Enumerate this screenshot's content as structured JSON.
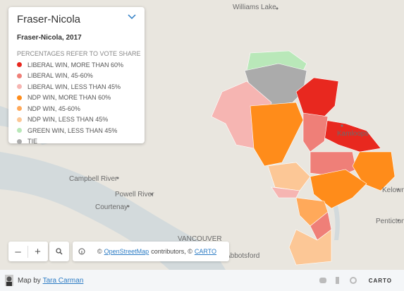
{
  "panel": {
    "title": "Fraser-Nicola",
    "subtitle": "Fraser-Nicola, 2017"
  },
  "legend": {
    "heading": "PERCENTAGES REFER TO VOTE SHARE",
    "items": [
      {
        "label": "LIBERAL WIN, MORE THAN 60%",
        "color": "#e8281f"
      },
      {
        "label": "LIBERAL WIN, 45-60%",
        "color": "#ef7f78"
      },
      {
        "label": "LIBERAL WIN, LESS THAN 45%",
        "color": "#f6b5b2"
      },
      {
        "label": "NDP WIN, MORE THAN 60%",
        "color": "#ff8c1a"
      },
      {
        "label": "NDP WIN, 45-60%",
        "color": "#ffa95a"
      },
      {
        "label": "NDP WIN, LESS THAN 45%",
        "color": "#fcc796"
      },
      {
        "label": "GREEN WIN, LESS THAN 45%",
        "color": "#b9e8b9"
      },
      {
        "label": "TIE",
        "color": "#ababab"
      }
    ]
  },
  "cities": [
    "Williams Lake",
    "Kamloops",
    "Campbell River",
    "Powell River",
    "Courtenay",
    "VANCOUVER",
    "Abbotsford",
    "Kelowna",
    "Penticton"
  ],
  "controls": {
    "zoom_out": "–",
    "zoom_in": "+"
  },
  "attribution": {
    "prefix": "©",
    "osm": "OpenStreetMap",
    "middle": "contributors, ©",
    "carto": "CARTO"
  },
  "footer": {
    "prefix": "Map by",
    "author": "Tara Carman",
    "brand": "CARTO"
  }
}
